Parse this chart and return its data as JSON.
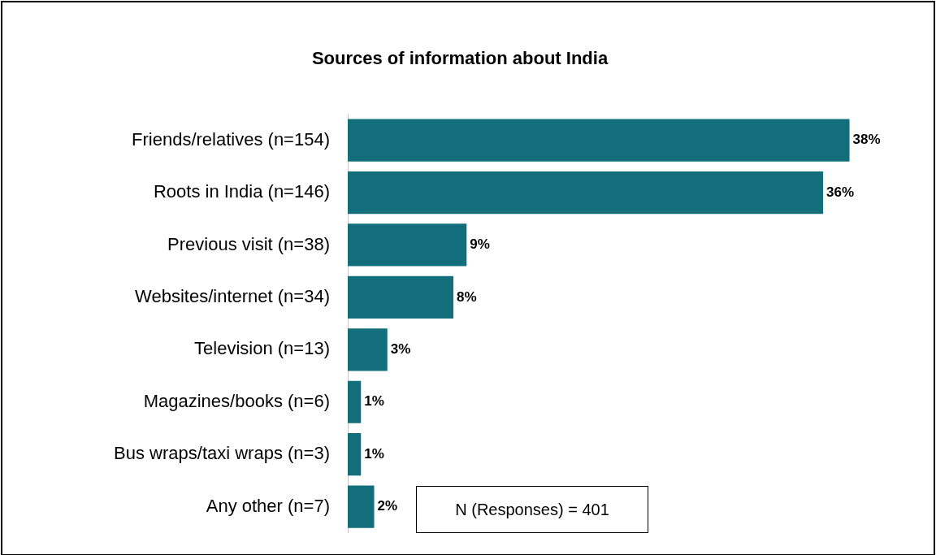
{
  "chart_data": {
    "type": "bar",
    "orientation": "horizontal",
    "relative": false,
    "title": "Sources of information about India",
    "categories": [
      "Friends/relatives (n=154)",
      "Roots in India (n=146)",
      "Previous visit (n=38)",
      "Websites/internet (n=34)",
      "Television (n=13)",
      "Magazines/books (n=6)",
      "Bus wraps/taxi wraps (n=3)",
      "Any other (n=7)"
    ],
    "values": [
      38,
      36,
      9,
      8,
      3,
      1,
      1,
      2
    ],
    "value_labels": [
      "38%",
      "36%",
      "9%",
      "8%",
      "3%",
      "1%",
      "1%",
      "2%"
    ],
    "color": "#136e7c",
    "legend": false,
    "annotations": [
      "N (Responses) = 401"
    ]
  }
}
